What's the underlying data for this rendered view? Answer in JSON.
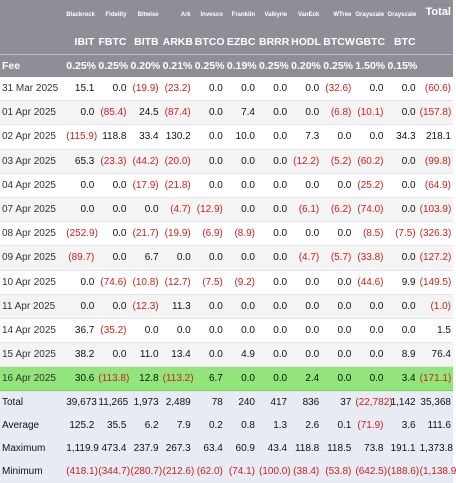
{
  "header": {
    "issuers": [
      "Blackrock",
      "Fidelity",
      "Bitwise",
      "Ark",
      "Invesco",
      "Franklin",
      "Valkyrie",
      "VanEck",
      "WTree",
      "Grayscale",
      "Grayscale"
    ],
    "total_label": "Total",
    "tickers": [
      "IBIT",
      "FBTC",
      "BITB",
      "ARKB",
      "BTCO",
      "EZBC",
      "BRRR",
      "HODL",
      "BTCW",
      "GBTC",
      "BTC"
    ],
    "fee_label": "Fee",
    "fees": [
      "0.25%",
      "0.25%",
      "0.20%",
      "0.21%",
      "0.25%",
      "0.19%",
      "0.25%",
      "0.20%",
      "0.25%",
      "1.50%",
      "0.15%"
    ]
  },
  "rows": [
    {
      "date": "31 Mar 2025",
      "values": [
        "15.1",
        "0.0",
        "(19.9)",
        "(23.2)",
        "0.0",
        "0.0",
        "0.0",
        "0.0",
        "(32.6)",
        "0.0",
        "0.0"
      ],
      "total": "(60.6)"
    },
    {
      "date": "01 Apr 2025",
      "values": [
        "0.0",
        "(85.4)",
        "24.5",
        "(87.4)",
        "0.0",
        "7.4",
        "0.0",
        "0.0",
        "(6.8)",
        "(10.1)",
        "0.0"
      ],
      "total": "(157.8)"
    },
    {
      "date": "02 Apr 2025",
      "values": [
        "(115.9)",
        "118.8",
        "33.4",
        "130.2",
        "0.0",
        "10.0",
        "0.0",
        "7.3",
        "0.0",
        "0.0",
        "34.3"
      ],
      "total": "218.1"
    },
    {
      "date": "03 Apr 2025",
      "values": [
        "65.3",
        "(23.3)",
        "(44.2)",
        "(20.0)",
        "0.0",
        "0.0",
        "0.0",
        "(12.2)",
        "(5.2)",
        "(60.2)",
        "0.0"
      ],
      "total": "(99.8)"
    },
    {
      "date": "04 Apr 2025",
      "values": [
        "0.0",
        "0.0",
        "(17.9)",
        "(21.8)",
        "0.0",
        "0.0",
        "0.0",
        "0.0",
        "0.0",
        "(25.2)",
        "0.0"
      ],
      "total": "(64.9)"
    },
    {
      "date": "07 Apr 2025",
      "values": [
        "0.0",
        "0.0",
        "0.0",
        "(4.7)",
        "(12.9)",
        "0.0",
        "0.0",
        "(6.1)",
        "(6.2)",
        "(74.0)",
        "0.0"
      ],
      "total": "(103.9)"
    },
    {
      "date": "08 Apr 2025",
      "values": [
        "(252.9)",
        "0.0",
        "(21.7)",
        "(19.9)",
        "(6.9)",
        "(8.9)",
        "0.0",
        "0.0",
        "0.0",
        "(8.5)",
        "(7.5)"
      ],
      "total": "(326.3)"
    },
    {
      "date": "09 Apr 2025",
      "values": [
        "(89.7)",
        "0.0",
        "6.7",
        "0.0",
        "0.0",
        "0.0",
        "0.0",
        "(4.7)",
        "(5.7)",
        "(33.8)",
        "0.0"
      ],
      "total": "(127.2)"
    },
    {
      "date": "10 Apr 2025",
      "values": [
        "0.0",
        "(74.6)",
        "(10.8)",
        "(12.7)",
        "(7.5)",
        "(9.2)",
        "0.0",
        "0.0",
        "0.0",
        "(44.6)",
        "9.9"
      ],
      "total": "(149.5)"
    },
    {
      "date": "11 Apr 2025",
      "values": [
        "0.0",
        "0.0",
        "(12.3)",
        "11.3",
        "0.0",
        "0.0",
        "0.0",
        "0.0",
        "0.0",
        "0.0",
        "0.0"
      ],
      "total": "(1.0)"
    },
    {
      "date": "14 Apr 2025",
      "values": [
        "36.7",
        "(35.2)",
        "0.0",
        "0.0",
        "0.0",
        "0.0",
        "0.0",
        "0.0",
        "0.0",
        "0.0",
        "0.0"
      ],
      "total": "1.5"
    },
    {
      "date": "15 Apr 2025",
      "values": [
        "38.2",
        "0.0",
        "11.0",
        "13.4",
        "0.0",
        "4.9",
        "0.0",
        "0.0",
        "0.0",
        "0.0",
        "8.9"
      ],
      "total": "76.4"
    },
    {
      "date": "16 Apr 2025",
      "values": [
        "30.6",
        "(113.8)",
        "12.8",
        "(113.2)",
        "6.7",
        "0.0",
        "0.0",
        "2.4",
        "0.0",
        "0.0",
        "3.4"
      ],
      "total": "(171.1)",
      "highlight": true
    }
  ],
  "stats": [
    {
      "label": "Total",
      "values": [
        "39,673",
        "11,265",
        "1,973",
        "2,489",
        "78",
        "240",
        "417",
        "836",
        "37",
        "(22,782)",
        "1,142"
      ],
      "total": "35,368"
    },
    {
      "label": "Average",
      "values": [
        "125.2",
        "35.5",
        "6.2",
        "7.9",
        "0.2",
        "0.8",
        "1.3",
        "2.6",
        "0.1",
        "(71.9)",
        "3.6"
      ],
      "total": "111.6"
    },
    {
      "label": "Maximum",
      "values": [
        "1,119.9",
        "473.4",
        "237.9",
        "267.3",
        "63.4",
        "60.9",
        "43.4",
        "118.8",
        "118.5",
        "73.8",
        "191.1"
      ],
      "total": "1,373.8"
    },
    {
      "label": "Minimum",
      "values": [
        "(418.1)",
        "(344.7)",
        "(280.7)",
        "(212.6)",
        "(62.0)",
        "(74.1)",
        "(100.0)",
        "(38.4)",
        "(53.8)",
        "(642.5)",
        "(188.6)"
      ],
      "total": "(1,138.9)"
    }
  ],
  "colors": {
    "header_bg": "#8e8e96",
    "negative": "#cc1f1f",
    "highlight": "#92e57a",
    "stats_bg": "#e8ebf4"
  }
}
